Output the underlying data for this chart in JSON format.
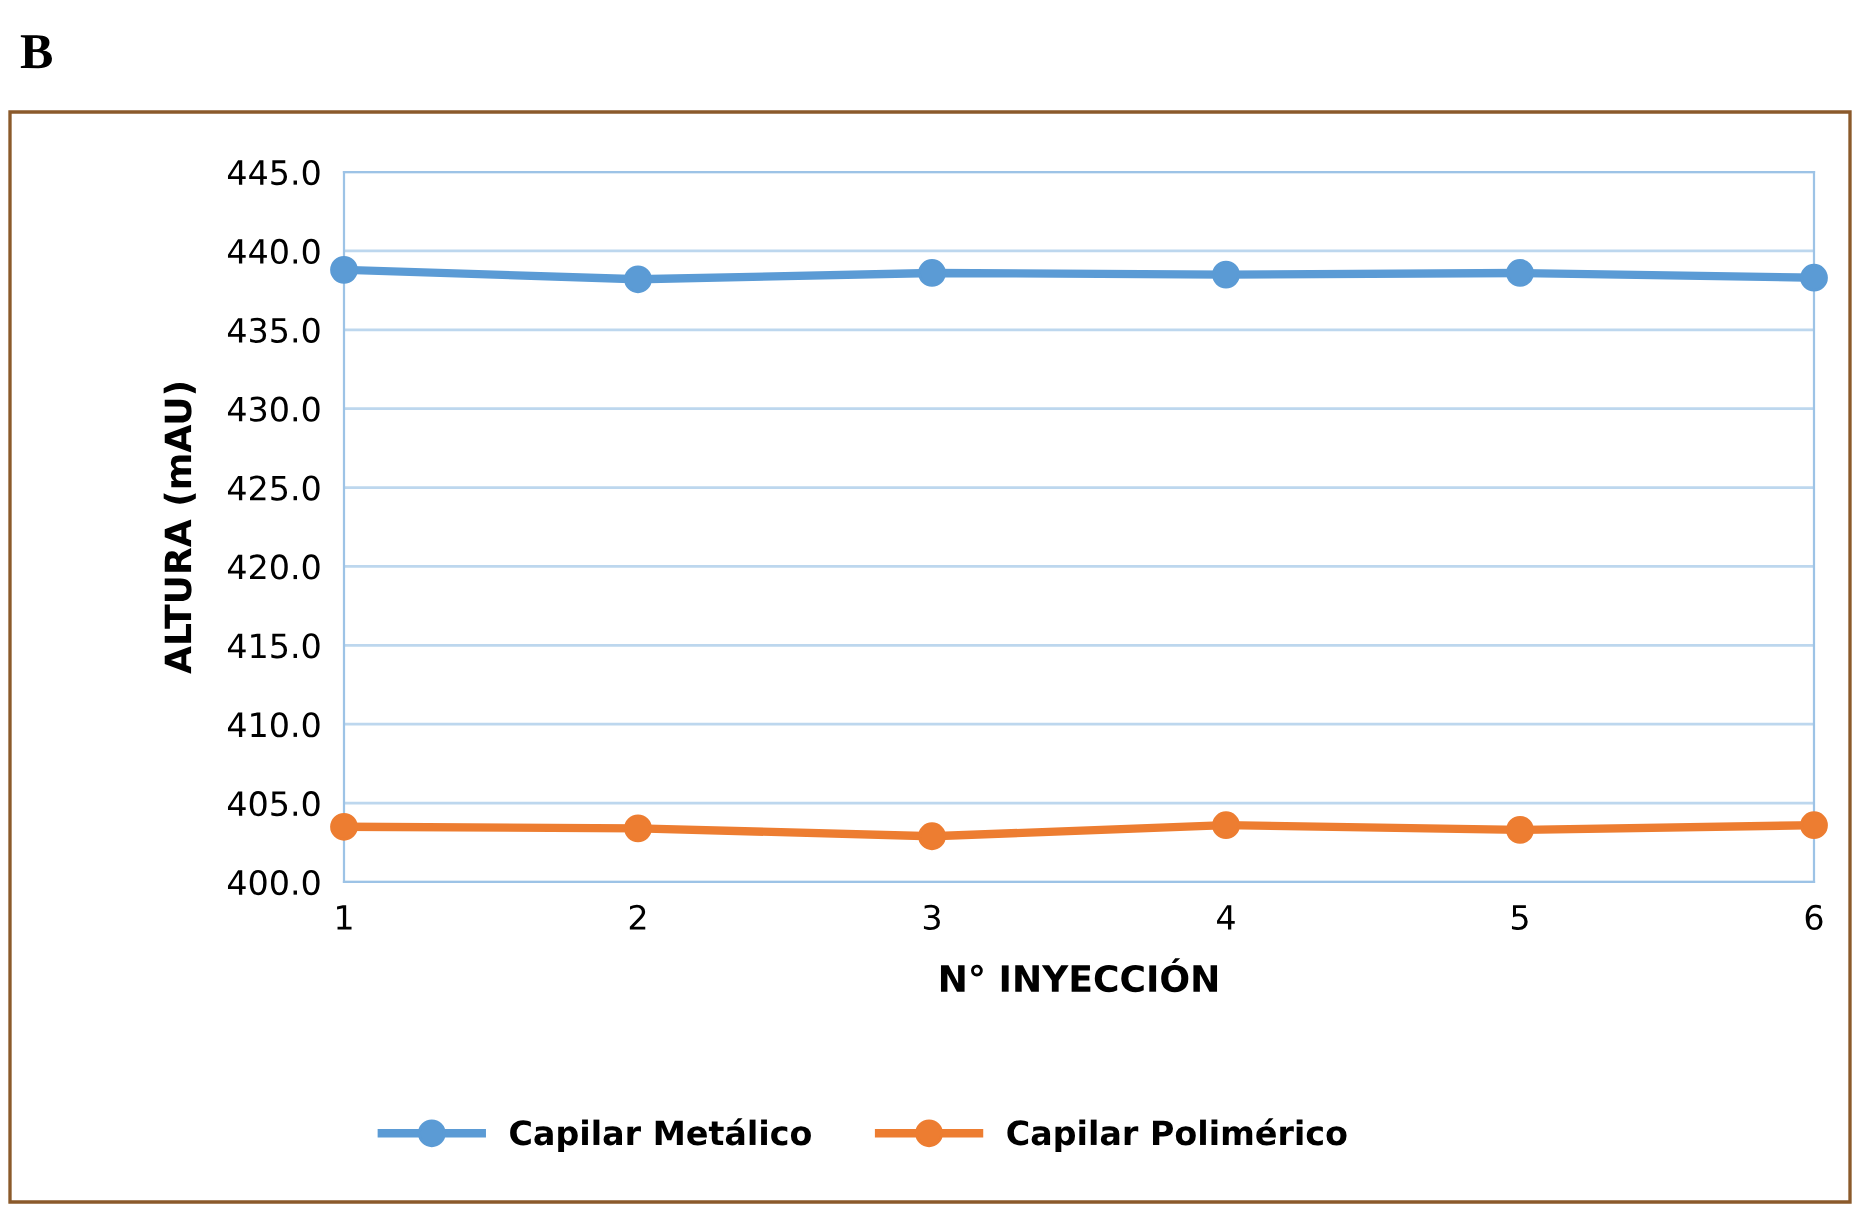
{
  "chart_data": {
    "type": "line",
    "xlabel": "N° INYECCIÓN",
    "ylabel": "ALTURA (mAU)",
    "annotations": [
      "B"
    ],
    "categories": [
      "1",
      "2",
      "3",
      "4",
      "5",
      "6"
    ],
    "series": [
      {
        "name": "Capilar Metálico",
        "color": "#5b9bd5",
        "values": [
          438.8,
          438.2,
          438.6,
          438.5,
          438.6,
          438.3
        ]
      },
      {
        "name": "Capilar Polimérico",
        "color": "#ed7d31",
        "values": [
          403.5,
          403.4,
          402.9,
          403.6,
          403.3,
          403.6
        ]
      }
    ],
    "ylim": [
      400,
      445
    ],
    "yticks": [
      {
        "value": 400,
        "label": "400.0"
      },
      {
        "value": 405,
        "label": "405.0"
      },
      {
        "value": 410,
        "label": "410.0"
      },
      {
        "value": 415,
        "label": "415.0"
      },
      {
        "value": 420,
        "label": "420.0"
      },
      {
        "value": 425,
        "label": "425.0"
      },
      {
        "value": 430,
        "label": "430.0"
      },
      {
        "value": 435,
        "label": "435.0"
      },
      {
        "value": 440,
        "label": "440.0"
      },
      {
        "value": 445,
        "label": "445.0"
      }
    ],
    "grid": "y",
    "legend": "bottom",
    "marker": "circle",
    "line_style": "solid"
  }
}
